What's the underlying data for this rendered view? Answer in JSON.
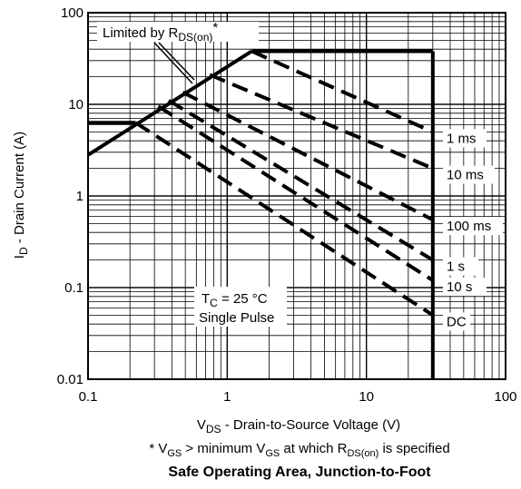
{
  "chart_data": {
    "type": "line",
    "title": "Safe Operating Area, Junction-to-Foot",
    "footnote": {
      "parts": [
        "* V",
        "GS",
        " > minimum V",
        "GS",
        " at which R",
        "DS(on)",
        " is specified"
      ]
    },
    "xlabel": {
      "main": "V",
      "sub": "DS",
      "rest": " - Drain-to-Source Voltage (V)"
    },
    "ylabel": {
      "main": "I",
      "sub": "D",
      "rest": " - Drain Current (A)"
    },
    "x_scale": "log",
    "y_scale": "log",
    "xlim": [
      0.1,
      100
    ],
    "ylim": [
      0.01,
      100
    ],
    "x_ticks": [
      "0.1",
      "1",
      "10",
      "100"
    ],
    "y_ticks": [
      "0.01",
      "0.1",
      "1",
      "10",
      "100"
    ],
    "grid": true,
    "annotations": {
      "rds_main": "Limited by R",
      "rds_sub": "DS(on)",
      "rds_star": "*",
      "tc_main": "T",
      "tc_sub": "C",
      "tc_rest": " = 25 °C",
      "pulse": "Single Pulse"
    },
    "boundaries": [
      {
        "name": "R_DS(on) limit",
        "points": [
          [
            0.1,
            2.8
          ],
          [
            1.5,
            38
          ]
        ]
      },
      {
        "name": "Current limit (top)",
        "points": [
          [
            1.5,
            38
          ],
          [
            30,
            38
          ]
        ]
      },
      {
        "name": "Current limit (low)",
        "points": [
          [
            0.1,
            6.3
          ],
          [
            0.22,
            6.3
          ]
        ]
      },
      {
        "name": "Voltage limit",
        "points": [
          [
            30,
            38
          ],
          [
            30,
            0.01
          ]
        ]
      }
    ],
    "series": [
      {
        "name": "1 ms",
        "style": "dashed",
        "points": [
          [
            1.5,
            38
          ],
          [
            30,
            5
          ]
        ]
      },
      {
        "name": "10 ms",
        "style": "dashed",
        "points": [
          [
            0.75,
            21
          ],
          [
            30,
            2
          ]
        ]
      },
      {
        "name": "100 ms",
        "style": "dashed",
        "points": [
          [
            0.48,
            13.5
          ],
          [
            30,
            0.55
          ]
        ]
      },
      {
        "name": "1 s",
        "style": "dashed",
        "points": [
          [
            0.38,
            11
          ],
          [
            30,
            0.2
          ]
        ]
      },
      {
        "name": "10 s",
        "style": "dashed",
        "points": [
          [
            0.32,
            9.5
          ],
          [
            30,
            0.12
          ]
        ]
      },
      {
        "name": "DC",
        "style": "dashed",
        "points": [
          [
            0.22,
            6.3
          ],
          [
            30,
            0.05
          ]
        ]
      }
    ]
  }
}
